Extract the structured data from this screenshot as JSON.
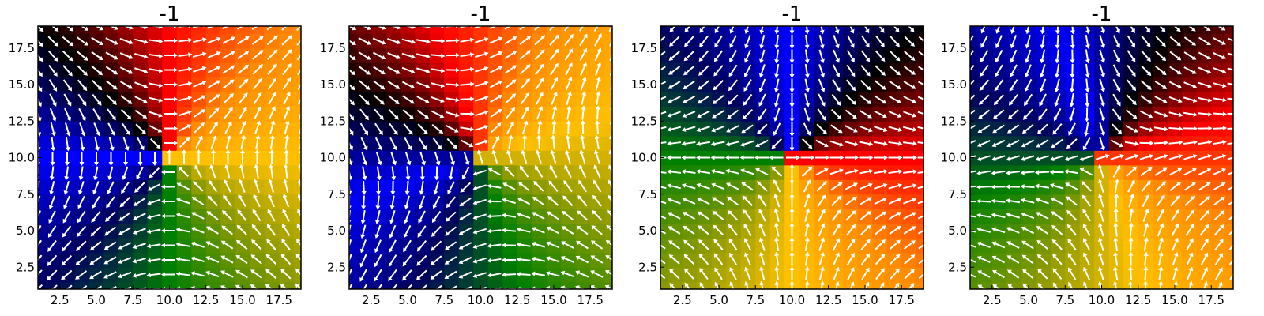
{
  "figure": {
    "panel_count": 4
  },
  "chart_data": [
    {
      "type": "heatmap",
      "subtype": "vector-field",
      "title": "-1",
      "field": "half-skyrmion-a",
      "xlim": [
        1,
        19
      ],
      "ylim": [
        1,
        19
      ],
      "grid_n": 19,
      "center": [
        10,
        10
      ],
      "x_ticks": [
        2.5,
        5.0,
        7.5,
        10.0,
        12.5,
        15.0,
        17.5
      ],
      "y_ticks": [
        2.5,
        5.0,
        7.5,
        10.0,
        12.5,
        15.0,
        17.5
      ],
      "x_tick_labels": [
        "2.5",
        "5.0",
        "7.5",
        "10.0",
        "12.5",
        "15.0",
        "17.5"
      ],
      "y_tick_labels": [
        "2.5",
        "5.0",
        "7.5",
        "10.0",
        "12.5",
        "15.0",
        "17.5"
      ],
      "grid": false
    },
    {
      "type": "heatmap",
      "subtype": "vector-field",
      "title": "-1",
      "field": "half-skyrmion-b",
      "xlim": [
        1,
        19
      ],
      "ylim": [
        1,
        19
      ],
      "grid_n": 19,
      "center": [
        10,
        10
      ],
      "x_ticks": [
        2.5,
        5.0,
        7.5,
        10.0,
        12.5,
        15.0,
        17.5
      ],
      "y_ticks": [
        2.5,
        5.0,
        7.5,
        10.0,
        12.5,
        15.0,
        17.5
      ],
      "x_tick_labels": [
        "2.5",
        "5.0",
        "7.5",
        "10.0",
        "12.5",
        "15.0",
        "17.5"
      ],
      "y_tick_labels": [
        "2.5",
        "5.0",
        "7.5",
        "10.0",
        "12.5",
        "15.0",
        "17.5"
      ],
      "grid": false
    },
    {
      "type": "heatmap",
      "subtype": "vector-field",
      "title": "-1",
      "field": "half-skyrmion-c",
      "xlim": [
        1,
        19
      ],
      "ylim": [
        1,
        19
      ],
      "grid_n": 19,
      "center": [
        10,
        10
      ],
      "x_ticks": [
        2.5,
        5.0,
        7.5,
        10.0,
        12.5,
        15.0,
        17.5
      ],
      "y_ticks": [
        2.5,
        5.0,
        7.5,
        10.0,
        12.5,
        15.0,
        17.5
      ],
      "x_tick_labels": [
        "2.5",
        "5.0",
        "7.5",
        "10.0",
        "12.5",
        "15.0",
        "17.5"
      ],
      "y_tick_labels": [
        "2.5",
        "5.0",
        "7.5",
        "10.0",
        "12.5",
        "15.0",
        "17.5"
      ],
      "grid": false
    },
    {
      "type": "heatmap",
      "subtype": "vector-field",
      "title": "-1",
      "field": "half-skyrmion-d",
      "xlim": [
        1,
        19
      ],
      "ylim": [
        1,
        19
      ],
      "grid_n": 19,
      "center": [
        10,
        10
      ],
      "x_ticks": [
        2.5,
        5.0,
        7.5,
        10.0,
        12.5,
        15.0,
        17.5
      ],
      "y_ticks": [
        2.5,
        5.0,
        7.5,
        10.0,
        12.5,
        15.0,
        17.5
      ],
      "x_tick_labels": [
        "2.5",
        "5.0",
        "7.5",
        "10.0",
        "12.5",
        "15.0",
        "17.5"
      ],
      "y_tick_labels": [
        "2.5",
        "5.0",
        "7.5",
        "10.0",
        "12.5",
        "15.0",
        "17.5"
      ],
      "grid": false
    }
  ],
  "colors": {
    "background": "#ffffff",
    "axis": "#000000",
    "arrow": "#ffffff",
    "colormap": [
      "#ff0000",
      "#ff8c00",
      "#ffc000",
      "#8a9a00",
      "#008000",
      "#000060",
      "#0000ff",
      "#000000"
    ]
  }
}
